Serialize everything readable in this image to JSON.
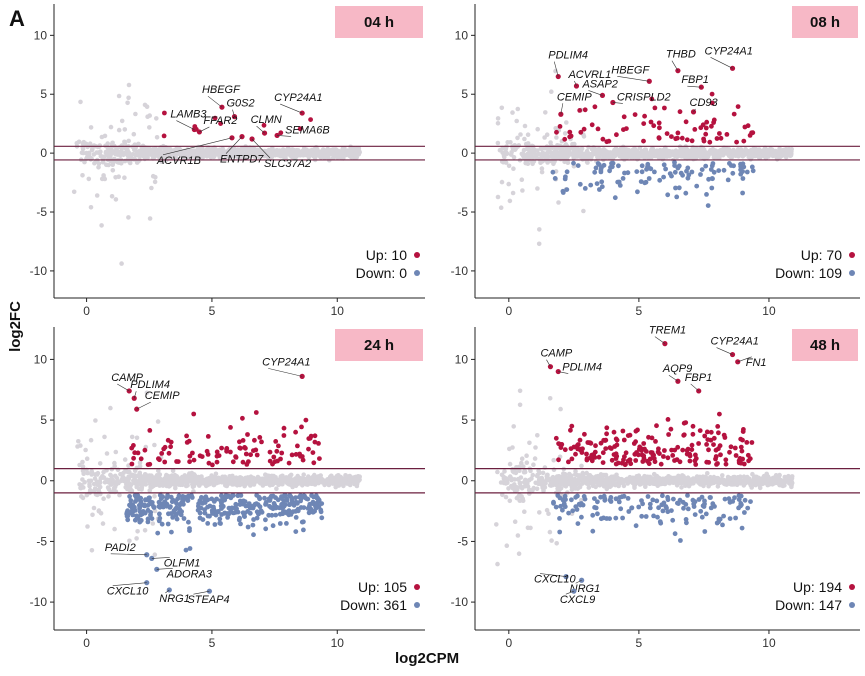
{
  "figure": {
    "panel_label": "A",
    "xlabel": "log2CPM",
    "ylabel": "log2FC"
  },
  "colors": {
    "up": "#b5123f",
    "down": "#6e86b5",
    "ns": "#d6d3d9",
    "threshold": "#6b1f3f",
    "title_box": "#f7b8c6"
  },
  "chart_data": [
    {
      "type": "scatter",
      "title": "04 h",
      "xlim": [
        -1.3,
        13.5
      ],
      "ylim": [
        -12.3,
        13.0
      ],
      "xticks": [
        0,
        5,
        10
      ],
      "yticks": [
        -10,
        -5,
        0,
        5,
        10
      ],
      "threshold_lines": [
        0.58,
        -0.58
      ],
      "up_label": "Up: 10",
      "down_label": "Down: 0",
      "up_count": 10,
      "down_count": 0,
      "labeled_genes": [
        {
          "gene": "HBEGF",
          "x": 5.4,
          "y": 3.9
        },
        {
          "gene": "G0S2",
          "x": 5.9,
          "y": 3.1
        },
        {
          "gene": "LAMB3",
          "x": 4.3,
          "y": 2.0
        },
        {
          "gene": "FFAR2",
          "x": 4.5,
          "y": 1.8
        },
        {
          "gene": "CYP24A1",
          "x": 8.6,
          "y": 3.4
        },
        {
          "gene": "CLMN",
          "x": 7.1,
          "y": 1.7
        },
        {
          "gene": "SEMA6B",
          "x": 7.6,
          "y": 1.5
        },
        {
          "gene": "ACVR1B",
          "x": 5.8,
          "y": 1.3
        },
        {
          "gene": "ENTPD7",
          "x": 6.2,
          "y": 1.4
        },
        {
          "gene": "SLC37A2",
          "x": 6.6,
          "y": 1.2
        }
      ]
    },
    {
      "type": "scatter",
      "title": "08 h",
      "xlim": [
        -1.3,
        13.5
      ],
      "ylim": [
        -12.3,
        13.0
      ],
      "xticks": [
        0,
        5,
        10
      ],
      "yticks": [
        -10,
        -5,
        0,
        5,
        10
      ],
      "threshold_lines": [
        0.58,
        -0.58
      ],
      "up_label": "Up: 70",
      "down_label": "Down: 109",
      "up_count": 70,
      "down_count": 109,
      "labeled_genes": [
        {
          "gene": "PDLIM4",
          "x": 1.9,
          "y": 6.5
        },
        {
          "gene": "ACVRL1",
          "x": 2.6,
          "y": 5.7
        },
        {
          "gene": "CEMIP",
          "x": 2.0,
          "y": 3.3
        },
        {
          "gene": "THBD",
          "x": 6.5,
          "y": 7.0
        },
        {
          "gene": "CYP24A1",
          "x": 8.6,
          "y": 7.2
        },
        {
          "gene": "HBEGF",
          "x": 5.4,
          "y": 6.1
        },
        {
          "gene": "FBP1",
          "x": 7.4,
          "y": 5.6
        },
        {
          "gene": "ASAP2",
          "x": 3.6,
          "y": 4.9
        },
        {
          "gene": "CRISPLD2",
          "x": 4.0,
          "y": 4.3
        },
        {
          "gene": "CD93",
          "x": 7.1,
          "y": 3.5
        }
      ]
    },
    {
      "type": "scatter",
      "title": "24 h",
      "xlim": [
        -1.3,
        13.5
      ],
      "ylim": [
        -12.3,
        13.0
      ],
      "xticks": [
        0,
        5,
        10
      ],
      "yticks": [
        -10,
        -5,
        0,
        5,
        10
      ],
      "threshold_lines": [
        1.0,
        -1.0
      ],
      "up_label": "Up: 105",
      "down_label": "Down: 361",
      "up_count": 105,
      "down_count": 361,
      "labeled_genes": [
        {
          "gene": "CAMP",
          "x": 1.7,
          "y": 7.4
        },
        {
          "gene": "PDLIM4",
          "x": 1.9,
          "y": 6.8
        },
        {
          "gene": "CEMIP",
          "x": 2.0,
          "y": 5.9
        },
        {
          "gene": "CYP24A1",
          "x": 8.6,
          "y": 8.6
        },
        {
          "gene": "PADI2",
          "x": 2.4,
          "y": -6.1
        },
        {
          "gene": "OLFM1",
          "x": 2.6,
          "y": -6.4
        },
        {
          "gene": "ADORA3",
          "x": 2.8,
          "y": -7.3
        },
        {
          "gene": "CXCL10",
          "x": 2.4,
          "y": -8.4
        },
        {
          "gene": "NRG1",
          "x": 3.3,
          "y": -9.0
        },
        {
          "gene": "STEAP4",
          "x": 4.9,
          "y": -9.1
        }
      ]
    },
    {
      "type": "scatter",
      "title": "48 h",
      "xlim": [
        -1.3,
        13.5
      ],
      "ylim": [
        -12.3,
        13.0
      ],
      "xticks": [
        0,
        5,
        10
      ],
      "yticks": [
        -10,
        -5,
        0,
        5,
        10
      ],
      "threshold_lines": [
        1.0,
        -1.0
      ],
      "up_label": "Up: 194",
      "down_label": "Down: 147",
      "up_count": 194,
      "down_count": 147,
      "labeled_genes": [
        {
          "gene": "CAMP",
          "x": 1.6,
          "y": 9.4
        },
        {
          "gene": "PDLIM4",
          "x": 1.9,
          "y": 9.0
        },
        {
          "gene": "TREM1",
          "x": 6.0,
          "y": 11.3
        },
        {
          "gene": "CYP24A1",
          "x": 8.6,
          "y": 10.4
        },
        {
          "gene": "FN1",
          "x": 8.8,
          "y": 9.8
        },
        {
          "gene": "AQP9",
          "x": 6.5,
          "y": 8.2
        },
        {
          "gene": "FBP1",
          "x": 7.3,
          "y": 7.4
        },
        {
          "gene": "CXCL10",
          "x": 2.2,
          "y": -7.9
        },
        {
          "gene": "NRG1",
          "x": 2.8,
          "y": -8.2
        },
        {
          "gene": "CXCL9",
          "x": 2.5,
          "y": -9.1
        }
      ]
    }
  ]
}
